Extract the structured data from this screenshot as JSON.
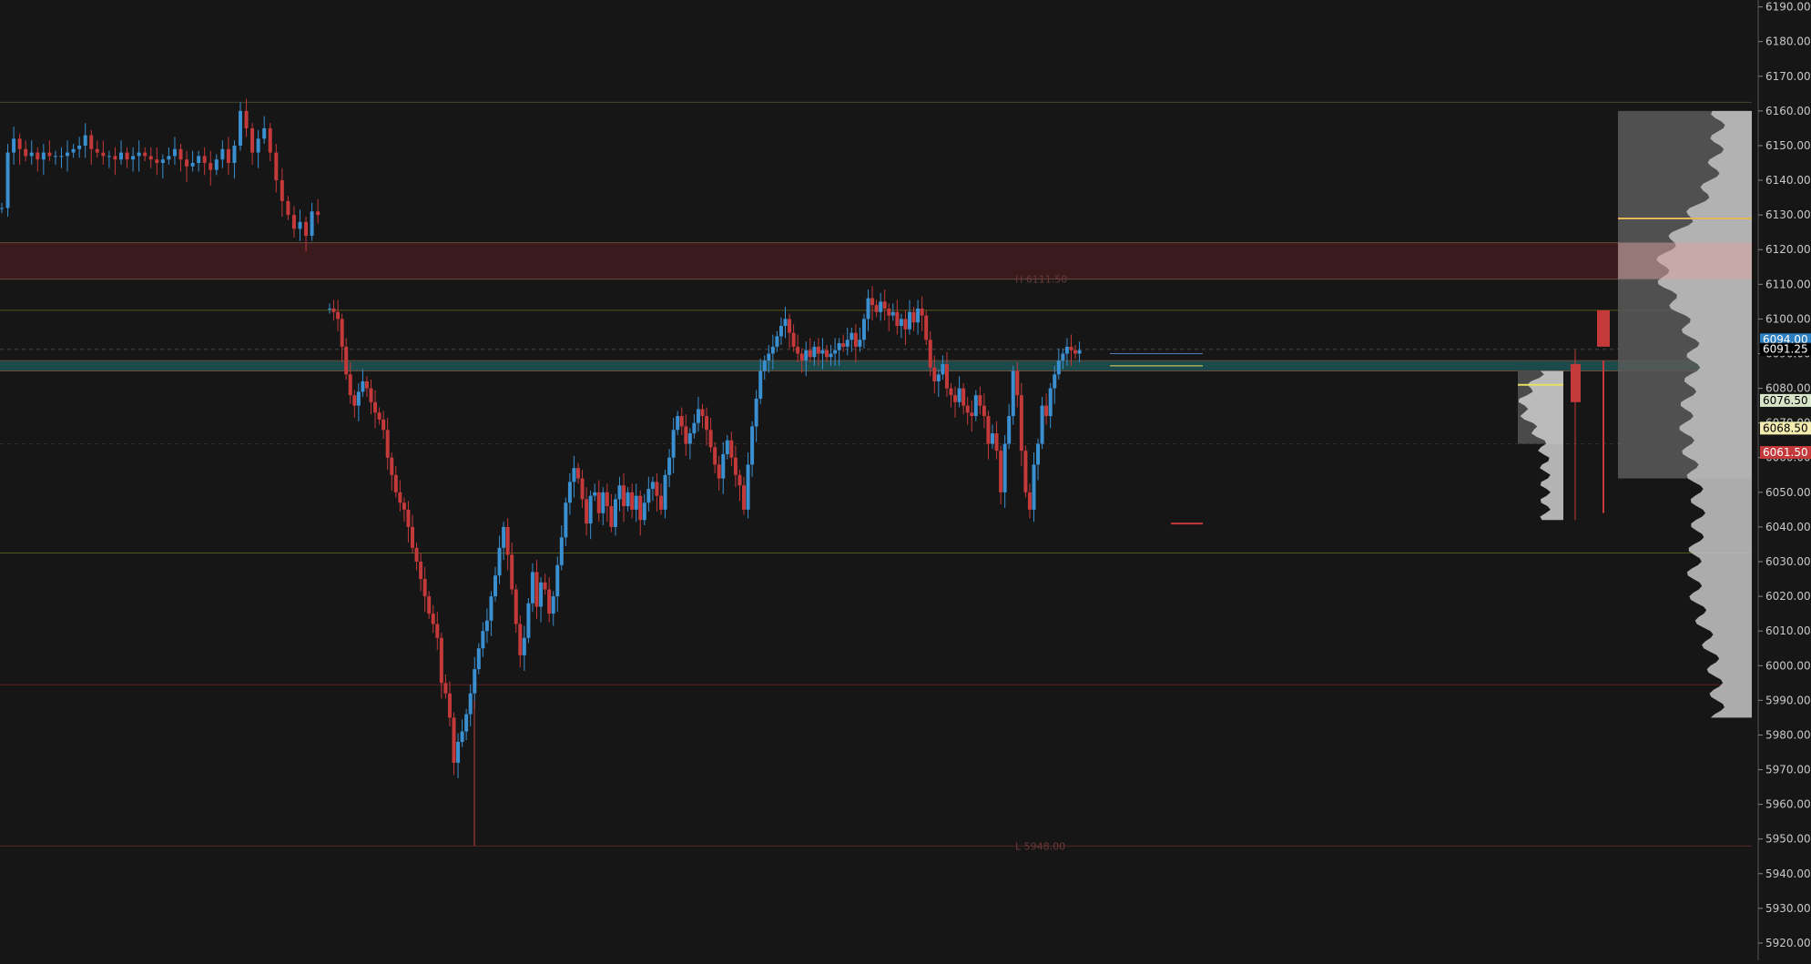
{
  "chart_data": {
    "type": "candlestick",
    "y_axis": {
      "position": "right",
      "ylim": [
        5915,
        6192
      ],
      "ticks": [
        "6190.00",
        "6180.00",
        "6170.00",
        "6160.00",
        "6150.00",
        "6140.00",
        "6130.00",
        "6120.00",
        "6110.00",
        "6100.00",
        "6090.00",
        "6080.00",
        "6070.00",
        "6060.00",
        "6050.00",
        "6040.00",
        "6030.00",
        "6020.00",
        "6010.00",
        "6000.00",
        "5990.00",
        "5980.00",
        "5970.00",
        "5960.00",
        "5950.00",
        "5940.00",
        "5930.00",
        "5920.00"
      ]
    },
    "price_labels": [
      {
        "text": "6094.00",
        "value": 6094.0,
        "bg": "#2d7fc1",
        "fg": "#ffffff"
      },
      {
        "text": "6091.25",
        "value": 6091.25,
        "bg": "#000000",
        "fg": "#ffffff"
      },
      {
        "text": "6076.50",
        "value": 6076.5,
        "bg": "#d7e6c8",
        "fg": "#000000"
      },
      {
        "text": "6068.50",
        "value": 6068.5,
        "bg": "#f2ecb0",
        "fg": "#000000"
      },
      {
        "text": "6061.50",
        "value": 6061.5,
        "bg": "#c4393a",
        "fg": "#ffffff"
      }
    ],
    "annotations": [
      {
        "text": "H 6111.50",
        "value": 6111.5
      },
      {
        "text": "L 5948.00",
        "value": 5948.0
      }
    ],
    "zones": [
      {
        "name": "resistance-zone",
        "from": 6111.5,
        "to": 6122,
        "color": "#3a1a1c"
      },
      {
        "name": "value-zone",
        "from": 6085,
        "to": 6088,
        "color": "#1c4a4a"
      }
    ],
    "levels": [
      {
        "value": 6162.5,
        "color": "#3a4a30"
      },
      {
        "value": 6102.5,
        "color": "#5a5a1a"
      },
      {
        "value": 6091.25,
        "color": "#444444",
        "dashed": true
      },
      {
        "value": 6064.0,
        "color": "#3a2a2a",
        "dashed": true
      },
      {
        "value": 6032.5,
        "color": "#55551a"
      },
      {
        "value": 5994.5,
        "color": "#5a2222"
      },
      {
        "value": 5948.0,
        "color": "#5a2222"
      }
    ],
    "session1_closes": [
      6132,
      6148,
      6152,
      6149,
      6147,
      6148,
      6146,
      6148,
      6147,
      6147,
      6147,
      6148,
      6149,
      6150,
      6153,
      6149,
      6148,
      6147,
      6147,
      6146,
      6148,
      6146,
      6147,
      6148,
      6147,
      6146,
      6145,
      6146,
      6147,
      6149,
      6146,
      6144,
      6145,
      6147,
      6145,
      6143,
      6146,
      6149,
      6145,
      6150,
      6160,
      6155,
      6148,
      6152,
      6155,
      6148,
      6140,
      6134,
      6130,
      6126,
      6128,
      6124,
      6131,
      6130
    ],
    "session2_closes": [
      6103,
      6102,
      6100,
      6092,
      6084,
      6078,
      6075,
      6079,
      6082,
      6080,
      6076,
      6073,
      6071,
      6068,
      6060,
      6055,
      6050,
      6047,
      6045,
      6040,
      6034,
      6030,
      6025,
      6020,
      6015,
      6012,
      6008,
      5995,
      5992,
      5985,
      5972,
      5978,
      5981,
      5986,
      5992,
      5999,
      6005,
      6010,
      6013,
      6020,
      6026,
      6034,
      6040,
      6032,
      6022,
      6012,
      6003,
      6008,
      6018,
      6027,
      6017,
      6024,
      6022,
      6015,
      6020,
      6029,
      6037,
      6047,
      6053,
      6057,
      6054,
      6048,
      6041,
      6049,
      6050,
      6044,
      6050,
      6046,
      6040,
      6048,
      6052,
      6046,
      6050,
      6045,
      6049,
      6042,
      6047,
      6051,
      6053,
      6049,
      6045,
      6055,
      6060,
      6068,
      6072,
      6069,
      6064,
      6067,
      6070,
      6074,
      6072,
      6068,
      6063,
      6058,
      6054,
      6061,
      6065,
      6060,
      6055,
      6052,
      6045,
      6058,
      6069,
      6077,
      6085,
      6088,
      6090,
      6092,
      6095,
      6098,
      6100,
      6096,
      6092,
      6090,
      6088,
      6091,
      6089,
      6092,
      6090,
      6091,
      6089,
      6090,
      6091,
      6093,
      6092,
      6094,
      6096,
      6092,
      6094,
      6100,
      6106,
      6104,
      6102,
      6105,
      6103,
      6101,
      6102,
      6098,
      6100,
      6097,
      6102,
      6099,
      6103,
      6101,
      6094,
      6086,
      6082,
      6084,
      6087,
      6080,
      6078,
      6076,
      6080,
      6075,
      6073,
      6072,
      6078,
      6075,
      6072,
      6064,
      6067,
      6062,
      6050,
      6064,
      6072,
      6085,
      6078,
      6062,
      6050,
      6045,
      6058,
      6064,
      6075,
      6072,
      6080,
      6084,
      6088,
      6090,
      6092,
      6091,
      6090,
      6091
    ],
    "volume_profile_session": "6040-6160"
  }
}
